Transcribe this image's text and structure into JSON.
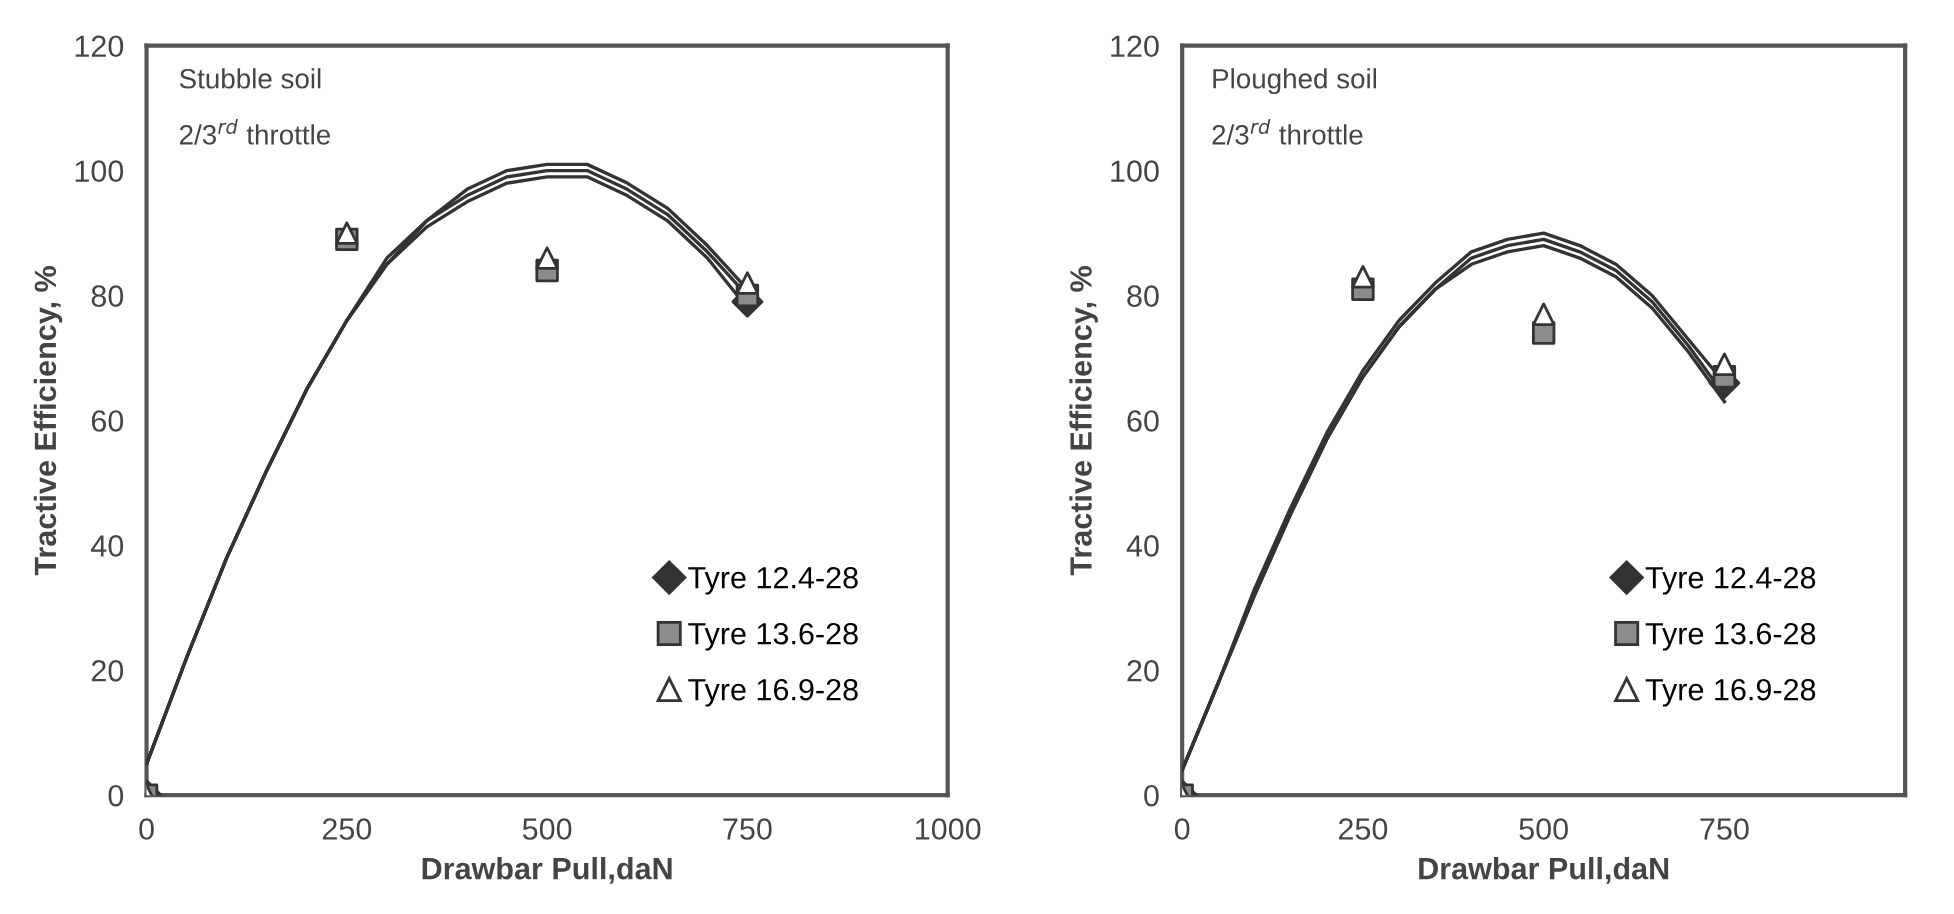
{
  "chart_data": [
    {
      "type": "scatter",
      "xlabel": "Drawbar Pull,daN",
      "ylabel": "Tractive Efficiency, %",
      "annotations": [
        "Stubble soil",
        "2/3$^{rd}$ throttle"
      ],
      "x": [
        0,
        250,
        500,
        750
      ],
      "xlim": [
        0,
        1000
      ],
      "xticks": [
        0,
        250,
        500,
        750,
        1000
      ],
      "ylim": [
        0,
        120
      ],
      "yticks": [
        0,
        20,
        40,
        60,
        80,
        100,
        120
      ],
      "grid": false,
      "legend": "bottom right",
      "series": [
        {
          "name": "Tyre 12.4-28",
          "color": "#333333",
          "marker": "diamond",
          "values": [
            0,
            null,
            null,
            79
          ]
        },
        {
          "name": "Tyre 13.6-28",
          "color": "#8c8c8c",
          "marker": "square",
          "values": [
            0,
            89,
            84,
            80
          ]
        },
        {
          "name": "Tyre 16.9-28",
          "color": "#ffffff",
          "marker": "triangle",
          "values": [
            0,
            90,
            86,
            82
          ]
        },
        {
          "type": "line",
          "color": "#333333",
          "marker": "none",
          "x": [
            0,
            50,
            100,
            150,
            200,
            250,
            300,
            350,
            400,
            450,
            500,
            550,
            600,
            650,
            700,
            750
          ],
          "values": [
            5,
            22,
            38,
            52,
            65,
            76,
            85,
            91,
            95,
            98,
            99,
            99,
            96,
            92,
            86,
            78
          ]
        },
        {
          "type": "line",
          "color": "#333333",
          "marker": "none",
          "x": [
            0,
            50,
            100,
            150,
            200,
            250,
            300,
            350,
            400,
            450,
            500,
            550,
            600,
            650,
            700,
            750
          ],
          "values": [
            5,
            22,
            38,
            52,
            65,
            76,
            85,
            92,
            96,
            99,
            100,
            100,
            97,
            93,
            87,
            80
          ]
        },
        {
          "type": "line",
          "color": "#333333",
          "marker": "none",
          "x": [
            0,
            50,
            100,
            150,
            200,
            250,
            300,
            350,
            400,
            450,
            500,
            550,
            600,
            650,
            700,
            750
          ],
          "values": [
            5,
            22,
            38,
            52,
            65,
            76,
            86,
            92,
            97,
            100,
            101,
            101,
            98,
            94,
            88,
            81
          ]
        }
      ]
    },
    {
      "type": "scatter",
      "xlabel": "Drawbar Pull,daN",
      "ylabel": "Tractive Efficiency, %",
      "annotations": [
        "Ploughed soil",
        "2/3$^{rd}$ throttle"
      ],
      "x": [
        0,
        250,
        500,
        750
      ],
      "xlim": [
        0,
        1000
      ],
      "xticks": [
        0,
        250,
        500,
        750
      ],
      "ylim": [
        0,
        120
      ],
      "yticks": [
        0,
        20,
        40,
        60,
        80,
        100,
        120
      ],
      "grid": false,
      "legend": "bottom right",
      "series": [
        {
          "name": "Tyre 12.4-28",
          "color": "#333333",
          "marker": "diamond",
          "values": [
            0,
            null,
            null,
            66
          ]
        },
        {
          "name": "Tyre 13.6-28",
          "color": "#8c8c8c",
          "marker": "square",
          "values": [
            0,
            81,
            74,
            67
          ]
        },
        {
          "name": "Tyre 16.9-28",
          "color": "#ffffff",
          "marker": "triangle",
          "values": [
            0,
            83,
            77,
            69
          ]
        },
        {
          "type": "line",
          "color": "#333333",
          "marker": "none",
          "x": [
            0,
            50,
            100,
            150,
            200,
            250,
            300,
            350,
            400,
            450,
            500,
            550,
            600,
            650,
            700,
            750
          ],
          "values": [
            4,
            18,
            32,
            45,
            57,
            67,
            75,
            81,
            85,
            87,
            88,
            86,
            83,
            78,
            71,
            63
          ]
        },
        {
          "type": "line",
          "color": "#333333",
          "marker": "none",
          "x": [
            0,
            50,
            100,
            150,
            200,
            250,
            300,
            350,
            400,
            450,
            500,
            550,
            600,
            650,
            700,
            750
          ],
          "values": [
            4,
            18,
            32,
            45,
            57,
            67,
            75,
            81,
            86,
            88,
            89,
            87,
            84,
            79,
            72,
            64
          ]
        },
        {
          "type": "line",
          "color": "#333333",
          "marker": "none",
          "x": [
            0,
            50,
            100,
            150,
            200,
            250,
            300,
            350,
            400,
            450,
            500,
            550,
            600,
            650,
            700,
            750
          ],
          "values": [
            4,
            18,
            33,
            46,
            58,
            68,
            76,
            82,
            87,
            89,
            90,
            88,
            85,
            80,
            73,
            66
          ]
        }
      ]
    }
  ]
}
